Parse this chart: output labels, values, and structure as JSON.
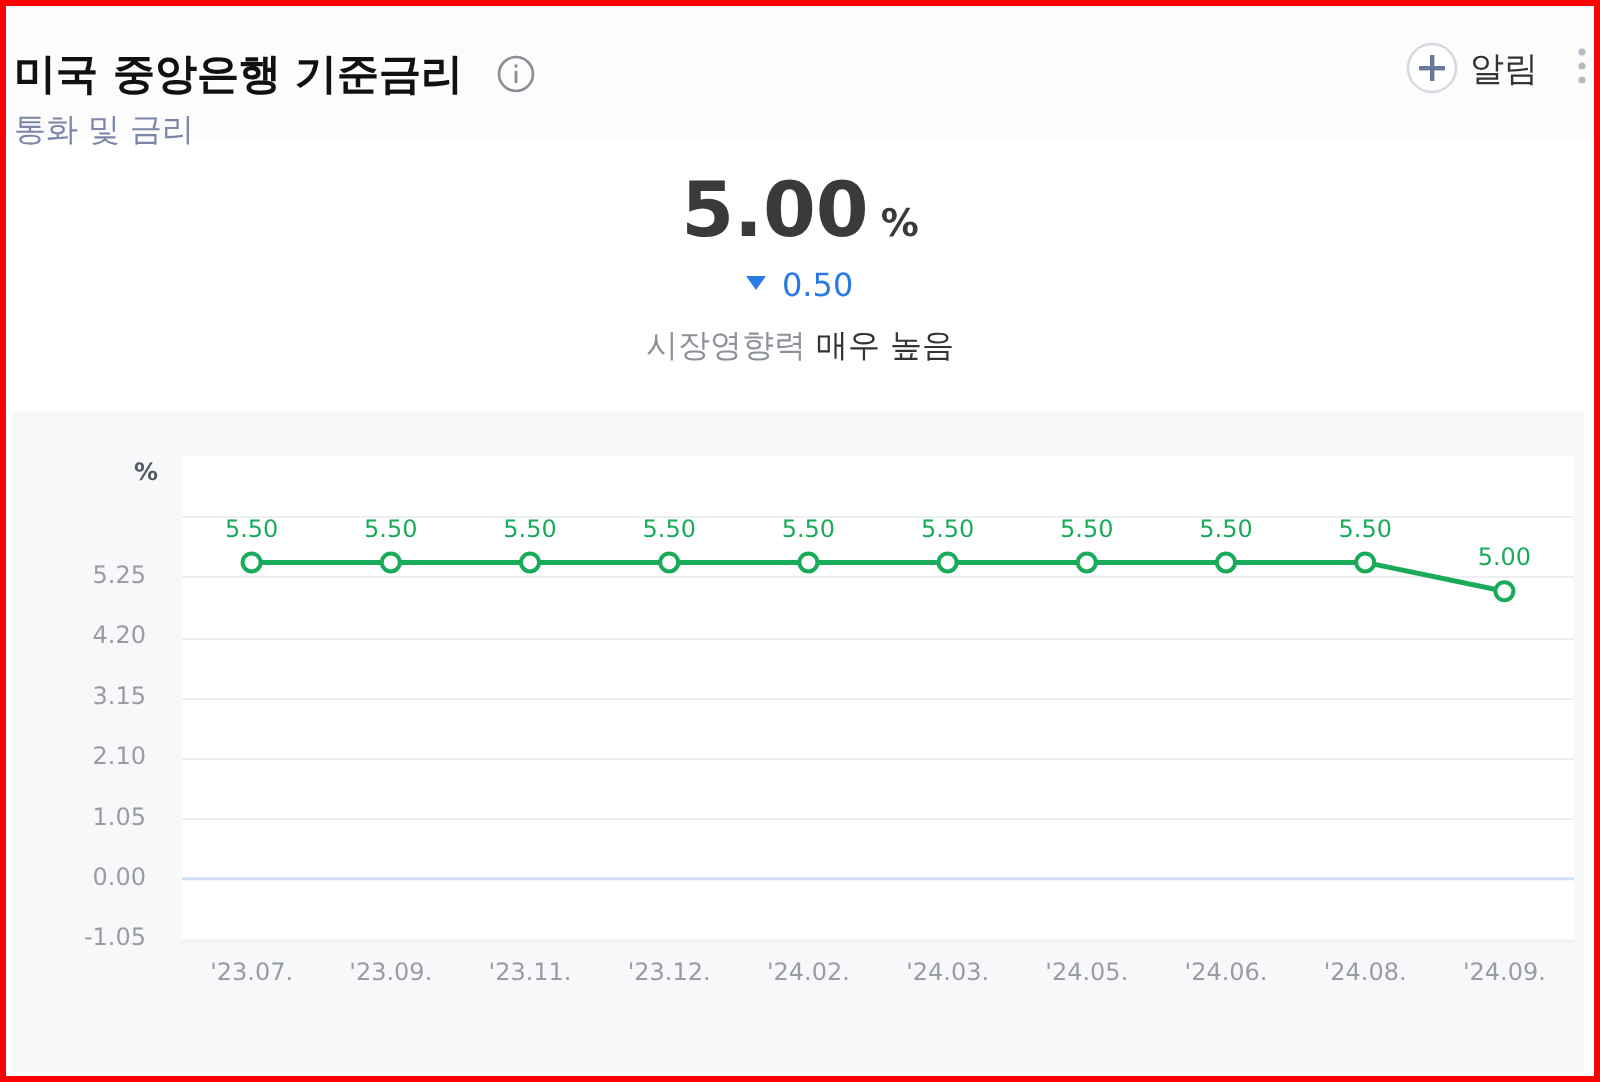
{
  "chart_data": {
    "type": "line",
    "title": "미국 중앙은행 기준금리",
    "subtitle": "통화 및 금리",
    "ylabel": "%",
    "annotations": [
      "5.00",
      "%",
      "0.50",
      "시장영향력",
      "매우 높음",
      "알림"
    ],
    "categories": [
      "'23.07.",
      "'23.09.",
      "'23.11.",
      "'23.12.",
      "'24.02.",
      "'24.03.",
      "'24.05.",
      "'24.06.",
      "'24.08.",
      "'24.09."
    ],
    "series": [
      {
        "color": "#1aab5a",
        "values": [
          5.5,
          5.5,
          5.5,
          5.5,
          5.5,
          5.5,
          5.5,
          5.5,
          5.5,
          5.0
        ],
        "value_labels": [
          "5.50",
          "5.50",
          "5.50",
          "5.50",
          "5.50",
          "5.50",
          "5.50",
          "5.50",
          "5.50",
          "5.00"
        ]
      }
    ],
    "ylim": [
      -1.05,
      7.35
    ],
    "yticks": [
      -1.05,
      {
        "value": 0,
        "label": "0.00"
      },
      1.05,
      {
        "value": 2.1,
        "label": "2.10"
      },
      3.15,
      {
        "value": 4.2,
        "label": "4.20"
      },
      5.25,
      {
        "value": 6.3,
        "label": null
      }
    ],
    "ref_lines": [
      {
        "axis": "y",
        "value": 0,
        "color": "#cfe0f5"
      }
    ],
    "grid": "y",
    "marker": "circle",
    "line_style": "solid",
    "legend": false
  }
}
